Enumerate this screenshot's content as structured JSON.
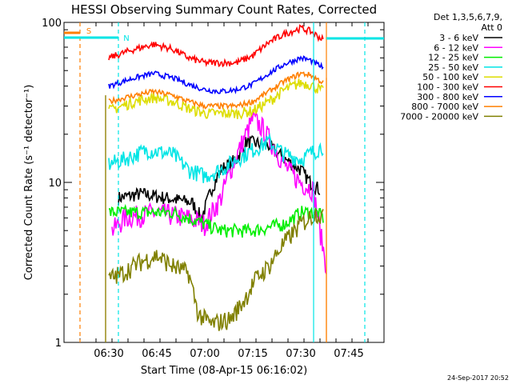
{
  "chart_data": {
    "type": "line",
    "title": "HESSI Observing Summary Count Rates, Corrected",
    "xlabel": "Start Time (08-Apr-15 06:16:02)",
    "ylabel": "Corrected Count Rate (s⁻¹ detector⁻¹)",
    "yscale": "log",
    "ylim": [
      1,
      100
    ],
    "xlim": [
      "06:16",
      "07:56"
    ],
    "xticks": [
      "06:30",
      "06:45",
      "07:00",
      "07:15",
      "07:30",
      "07:45"
    ],
    "yticks": [
      "1",
      "10",
      "100"
    ],
    "legend_header": [
      "Det 1,3,5,6,7,9,",
      "Att 0"
    ],
    "legend_position": "right",
    "timestamp": "24-Sep-2017 20:52",
    "data_start": "06:29",
    "data_end": "07:38",
    "flag_bars": [
      {
        "label": "S",
        "color": "#ff7f00",
        "from": "06:16",
        "to": "06:21"
      },
      {
        "label": "N",
        "color": "#00e5e5",
        "from": "06:16",
        "to": "06:33"
      },
      {
        "label": "",
        "color": "#00e5e5",
        "from": "07:38",
        "to": "07:56"
      }
    ],
    "markers": [
      {
        "time": "06:21",
        "color": "#ff7f00",
        "style": "dashed"
      },
      {
        "time": "06:33",
        "color": "#00e5e5",
        "style": "dashed"
      },
      {
        "time": "07:34",
        "color": "#00e5e5",
        "style": "solid"
      },
      {
        "time": "07:38",
        "color": "#ff7f00",
        "style": "solid"
      },
      {
        "time": "07:50",
        "color": "#00e5e5",
        "style": "dashed"
      }
    ],
    "series": [
      {
        "name": "3 - 6 keV",
        "color": "#000000",
        "x": [
          "06:33",
          "06:40",
          "06:48",
          "06:56",
          "06:59",
          "07:02",
          "07:05",
          "07:10",
          "07:13",
          "07:20",
          "07:25",
          "07:30",
          "07:33",
          "07:36"
        ],
        "y": [
          8,
          8.5,
          8,
          7.5,
          6,
          9,
          12,
          14,
          18,
          17,
          14,
          12,
          10,
          9
        ]
      },
      {
        "name": "6 - 12 keV",
        "color": "#ff00ff",
        "x": [
          "06:31",
          "06:35",
          "06:45",
          "06:55",
          "07:00",
          "07:05",
          "07:08",
          "07:15",
          "07:18",
          "07:23",
          "07:26",
          "07:30",
          "07:34",
          "07:36",
          "07:38"
        ],
        "y": [
          5,
          6,
          6.5,
          6,
          5.5,
          8,
          12,
          25,
          22,
          15,
          12,
          10,
          9,
          5,
          3
        ]
      },
      {
        "name": "12 - 25 keV",
        "color": "#00ee00",
        "x": [
          "06:30",
          "06:40",
          "06:50",
          "06:55",
          "07:05",
          "07:15",
          "07:25",
          "07:30",
          "07:35",
          "07:37"
        ],
        "y": [
          6.5,
          6.5,
          6.5,
          6,
          5,
          5,
          5.5,
          6.5,
          6.5,
          6
        ]
      },
      {
        "name": "25 - 50 keV",
        "color": "#00e5e5",
        "x": [
          "06:30",
          "06:35",
          "06:42",
          "06:50",
          "06:55",
          "07:00",
          "07:05",
          "07:10",
          "07:15",
          "07:20",
          "07:25",
          "07:30",
          "07:35",
          "07:37"
        ],
        "y": [
          13,
          14,
          16,
          15,
          12,
          11,
          12,
          14,
          16,
          18,
          15,
          14,
          16,
          17
        ]
      },
      {
        "name": "50 - 100 keV",
        "color": "#dddd00",
        "x": [
          "06:30",
          "06:38",
          "06:44",
          "06:50",
          "06:55",
          "07:00",
          "07:05",
          "07:10",
          "07:15",
          "07:20",
          "07:25",
          "07:30",
          "07:33",
          "07:37"
        ],
        "y": [
          28,
          32,
          34,
          32,
          29,
          27,
          27,
          27,
          28,
          32,
          38,
          42,
          41,
          37
        ]
      },
      {
        "name": "100 - 300 keV",
        "color": "#ff0000",
        "x": [
          "06:30",
          "06:38",
          "06:44",
          "06:50",
          "06:55",
          "07:00",
          "07:05",
          "07:10",
          "07:15",
          "07:20",
          "07:25",
          "07:30",
          "07:33",
          "07:37"
        ],
        "y": [
          60,
          68,
          73,
          68,
          60,
          56,
          56,
          56,
          62,
          75,
          85,
          92,
          88,
          78
        ]
      },
      {
        "name": "300 - 800 keV",
        "color": "#0000ff",
        "x": [
          "06:30",
          "06:38",
          "06:44",
          "06:50",
          "06:55",
          "07:00",
          "07:05",
          "07:10",
          "07:15",
          "07:20",
          "07:25",
          "07:30",
          "07:33",
          "07:37"
        ],
        "y": [
          40,
          45,
          48,
          45,
          41,
          38,
          37,
          38,
          41,
          48,
          55,
          60,
          58,
          52
        ]
      },
      {
        "name": "800 - 7000 keV",
        "color": "#ff7f00",
        "x": [
          "06:30",
          "06:38",
          "06:44",
          "06:50",
          "06:55",
          "07:00",
          "07:05",
          "07:10",
          "07:15",
          "07:20",
          "07:25",
          "07:30",
          "07:33",
          "07:37"
        ],
        "y": [
          32,
          35,
          37,
          35,
          32,
          30,
          30,
          30,
          32,
          37,
          43,
          48,
          47,
          42
        ]
      },
      {
        "name": "7000 - 20000 keV",
        "color": "#808000",
        "x": [
          "06:30",
          "06:34",
          "06:40",
          "06:45",
          "06:50",
          "06:55",
          "06:58",
          "07:02",
          "07:08",
          "07:12",
          "07:16",
          "07:20",
          "07:24",
          "07:30",
          "07:35",
          "07:37"
        ],
        "y": [
          2.5,
          2.7,
          3.2,
          3.5,
          3.0,
          2.7,
          1.5,
          1.3,
          1.4,
          1.8,
          2.5,
          3.0,
          4.0,
          5.5,
          6.5,
          6.0
        ]
      }
    ]
  }
}
